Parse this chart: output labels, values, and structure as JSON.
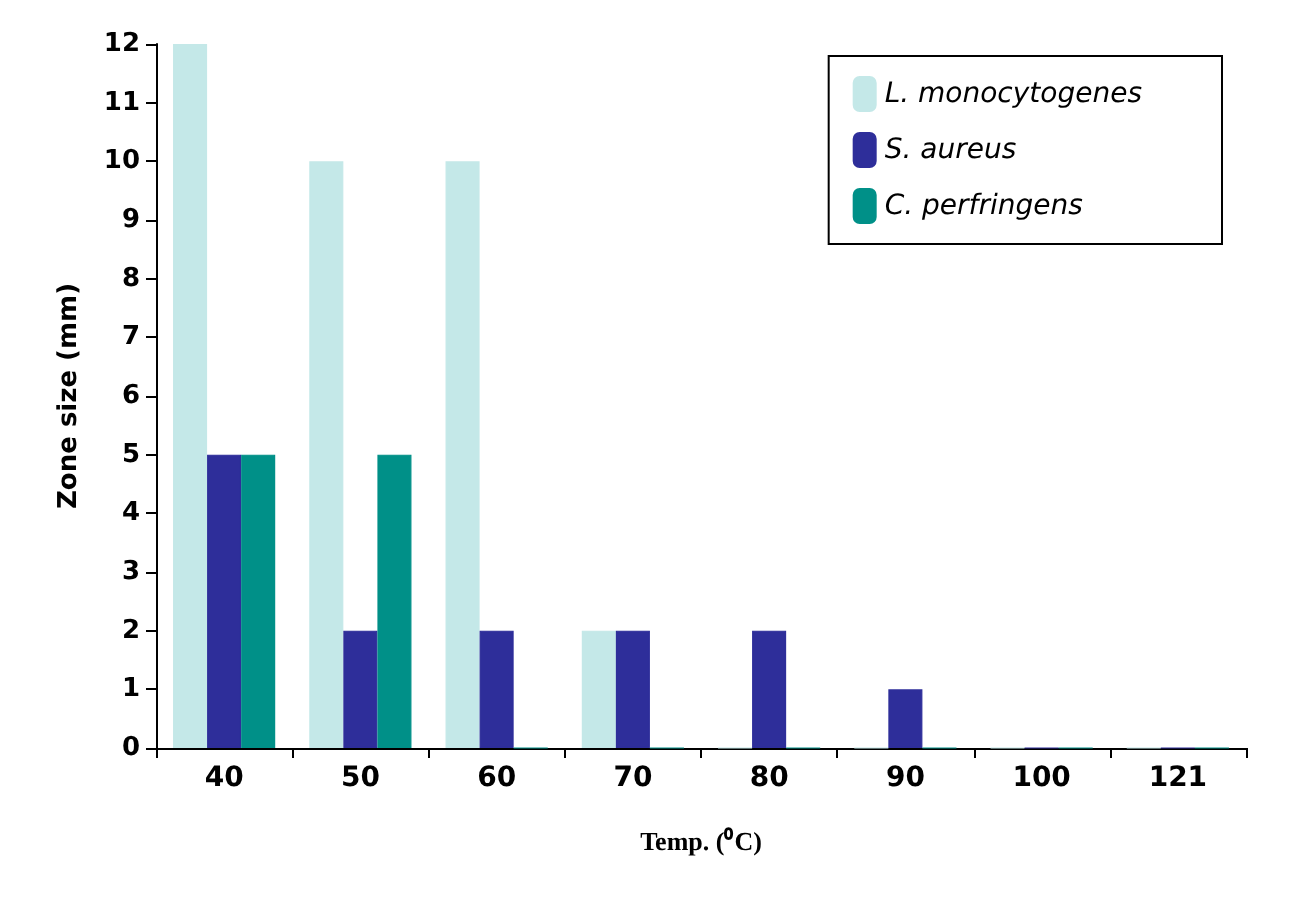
{
  "chart_data": {
    "type": "bar",
    "xlabel": "Temp. (⁰C)",
    "ylabel": "Zone size (mm)",
    "categories": [
      "40",
      "50",
      "60",
      "70",
      "80",
      "90",
      "100",
      "121"
    ],
    "series": [
      {
        "name": "L. monocytogenes",
        "color": "#c4e8e8",
        "values": [
          12,
          10,
          10,
          2,
          0,
          0,
          0,
          0
        ]
      },
      {
        "name": "S. aureus",
        "color": "#2e2e9a",
        "values": [
          5,
          2,
          2,
          2,
          2,
          1,
          0,
          0
        ]
      },
      {
        "name": "C. perfringens",
        "color": "#009088",
        "values": [
          5,
          5,
          0,
          0,
          0,
          0,
          0,
          0
        ]
      }
    ],
    "ylim": [
      0,
      12
    ],
    "yticks": [
      0,
      1,
      2,
      3,
      4,
      5,
      6,
      7,
      8,
      9,
      10,
      11,
      12
    ],
    "grid": false,
    "legend": "top right"
  }
}
